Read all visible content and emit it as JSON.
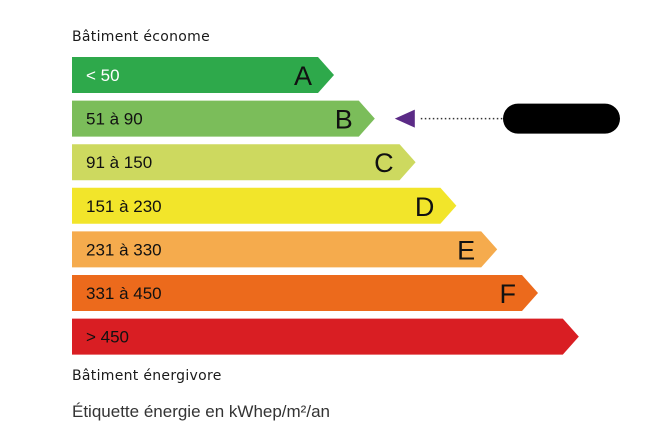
{
  "header": {
    "label": "Bâtiment économe"
  },
  "footer_low": {
    "label": "Bâtiment énergivore"
  },
  "title": "Étiquette énergie en kWhep/m²/an",
  "classes": [
    {
      "letter": "A",
      "range": "< 50",
      "color": "#2ea94b",
      "text_color": "#ffffff"
    },
    {
      "letter": "B",
      "range": "51 à 90",
      "color": "#7bbd5a",
      "text_color": "#111111"
    },
    {
      "letter": "C",
      "range": "91 à 150",
      "color": "#cdd95f",
      "text_color": "#111111"
    },
    {
      "letter": "D",
      "range": "151 à 230",
      "color": "#f2e52a",
      "text_color": "#111111"
    },
    {
      "letter": "E",
      "range": "231 à 330",
      "color": "#f5ab4d",
      "text_color": "#111111"
    },
    {
      "letter": "F",
      "range": "331 à 450",
      "color": "#ec6a1c",
      "text_color": "#111111"
    },
    {
      "letter": "",
      "range": "> 450",
      "color": "#d91e23",
      "text_color": "#111111"
    }
  ],
  "indicator": {
    "class": "B",
    "color": "#5b2a86",
    "redaction_color": "#000000"
  }
}
